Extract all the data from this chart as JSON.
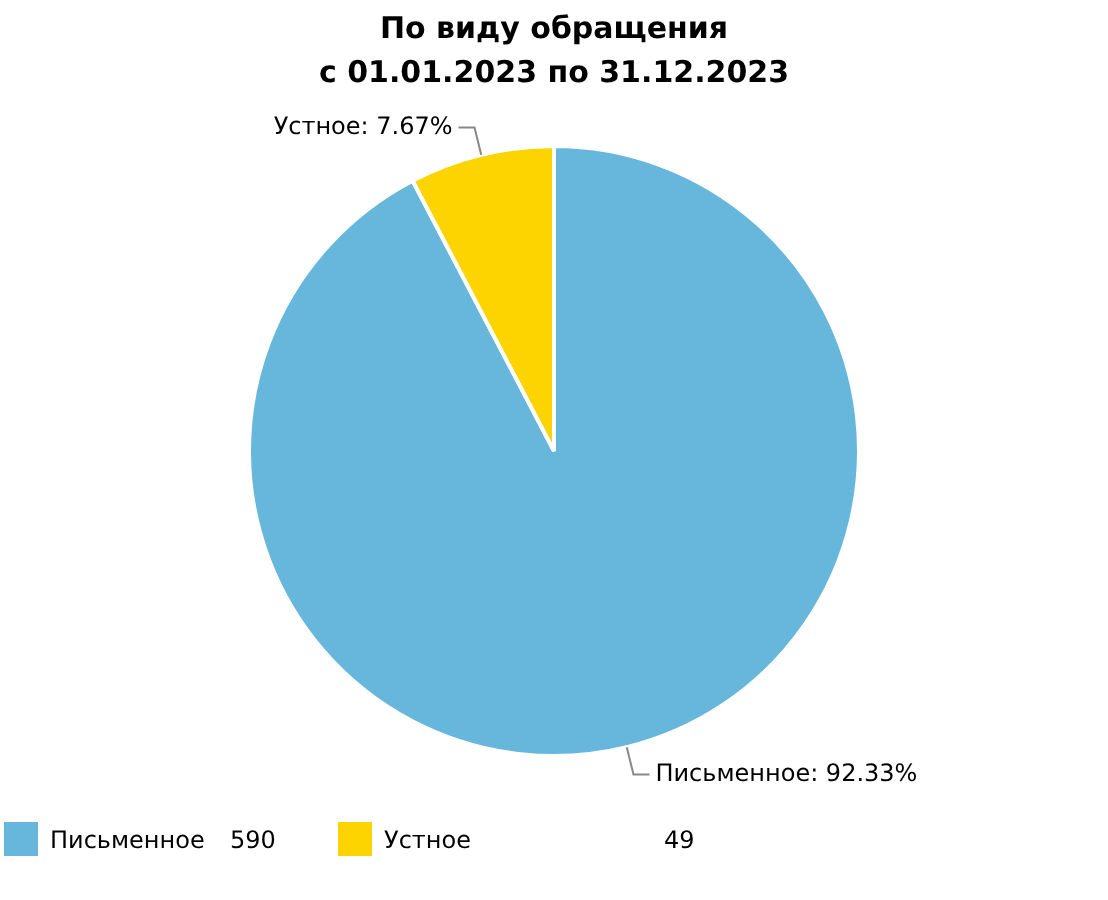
{
  "chart_data": {
    "type": "pie",
    "title": "По виду обращения",
    "subtitle": "с 01.01.2023 по 31.12.2023",
    "categories": [
      "Письменное",
      "Устное"
    ],
    "values": [
      92.33,
      7.67
    ],
    "annotations": [
      "590",
      "49"
    ],
    "colors": [
      "#67b7dc",
      "#fdd400"
    ],
    "value_labels": [
      "Письменное: 92.33%",
      "Устное: 7.67%"
    ],
    "legend": "bottom left"
  }
}
